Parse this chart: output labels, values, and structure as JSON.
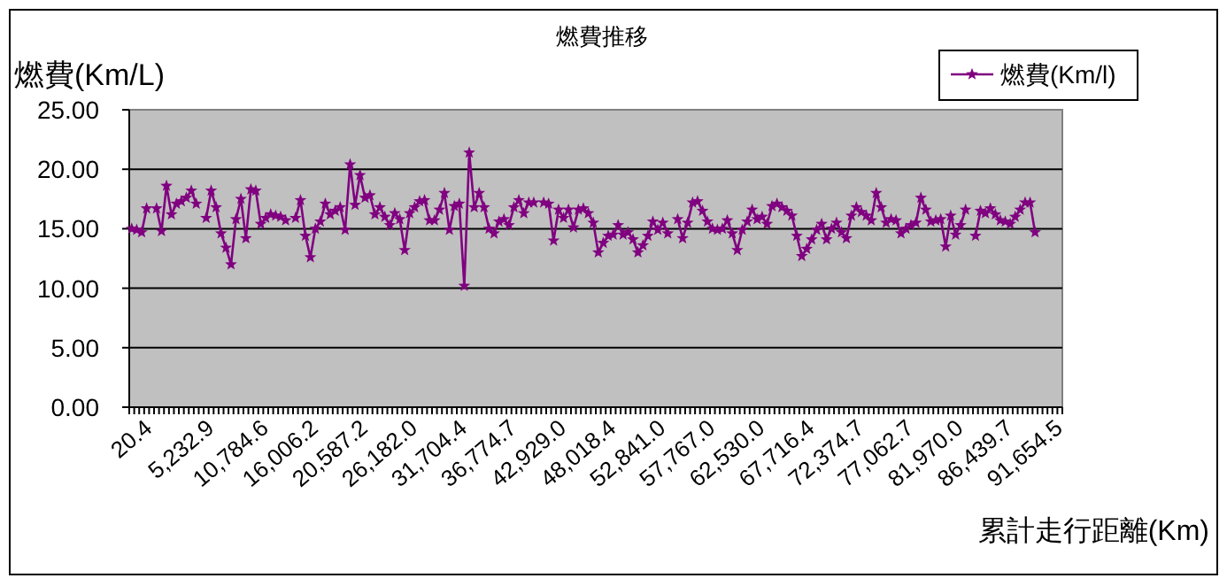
{
  "chart_data": {
    "type": "line",
    "title": "燃費推移",
    "ylabel": "燃費(Km/L)",
    "xlabel": "累計走行距離(Km)",
    "categories": [
      "20.4",
      null,
      null,
      null,
      null,
      null,
      null,
      null,
      null,
      null,
      "5,232.9",
      null,
      null,
      null,
      null,
      null,
      null,
      null,
      null,
      null,
      "10,784.6",
      null,
      null,
      null,
      null,
      null,
      null,
      null,
      null,
      null,
      "16,006.2",
      null,
      null,
      null,
      null,
      null,
      null,
      null,
      null,
      null,
      "20,587.2",
      null,
      null,
      null,
      null,
      null,
      null,
      null,
      null,
      null,
      "26,182.0",
      null,
      null,
      null,
      null,
      null,
      null,
      null,
      null,
      null,
      "31,704.4",
      null,
      null,
      null,
      null,
      null,
      null,
      null,
      null,
      null,
      "36,774.7",
      null,
      null,
      null,
      null,
      null,
      null,
      null,
      null,
      null,
      "42,929.0",
      null,
      null,
      null,
      null,
      null,
      null,
      null,
      null,
      null,
      "48,018.4",
      null,
      null,
      null,
      null,
      null,
      null,
      null,
      null,
      null,
      "52,841.0",
      null,
      null,
      null,
      null,
      null,
      null,
      null,
      null,
      null,
      "57,767.0",
      null,
      null,
      null,
      null,
      null,
      null,
      null,
      null,
      null,
      "62,530.0",
      null,
      null,
      null,
      null,
      null,
      null,
      null,
      null,
      null,
      "67,716.4",
      null,
      null,
      null,
      null,
      null,
      null,
      null,
      null,
      null,
      "72,374.7",
      null,
      null,
      null,
      null,
      null,
      null,
      null,
      null,
      null,
      "77,062.7",
      null,
      null,
      null,
      null,
      null,
      null,
      null,
      null,
      null,
      "81,970.0",
      null,
      null,
      null,
      null,
      null,
      null,
      null,
      null,
      null,
      "86,439.7",
      null,
      null,
      null,
      null,
      null,
      null,
      null,
      null,
      null,
      "91,654.5",
      null,
      null,
      null,
      null,
      null,
      null,
      null
    ],
    "series": [
      {
        "name": "燃費(Km/l)",
        "color": "#800080",
        "values": [
          15.0,
          14.9,
          14.7,
          16.7,
          null,
          16.7,
          14.8,
          18.6,
          16.2,
          17.1,
          17.3,
          17.6,
          18.2,
          17.1,
          null,
          15.9,
          18.2,
          16.8,
          14.6,
          13.4,
          12.0,
          15.8,
          17.5,
          14.2,
          18.3,
          18.2,
          15.4,
          15.9,
          16.2,
          16.1,
          16.0,
          15.7,
          null,
          15.9,
          17.4,
          14.4,
          12.6,
          15.0,
          15.6,
          17.1,
          16.2,
          16.5,
          16.8,
          14.9,
          20.4,
          17.0,
          19.5,
          17.6,
          17.8,
          16.2,
          16.8,
          16.0,
          15.3,
          16.3,
          15.8,
          13.2,
          16.3,
          16.8,
          17.3,
          17.4,
          15.7,
          15.7,
          16.6,
          18.0,
          14.9,
          16.9,
          17.1,
          10.2,
          21.4,
          16.8,
          18.0,
          16.8,
          15.0,
          14.6,
          15.6,
          15.8,
          15.3,
          16.8,
          17.4,
          16.3,
          17.2,
          17.2,
          null,
          17.2,
          17.1,
          14.0,
          16.6,
          15.9,
          16.6,
          15.1,
          16.6,
          16.7,
          16.3,
          15.5,
          13.0,
          13.8,
          14.4,
          14.5,
          15.3,
          14.5,
          14.7,
          14.1,
          13.0,
          13.6,
          14.4,
          15.6,
          14.9,
          15.5,
          14.6,
          null,
          15.8,
          14.2,
          15.5,
          17.2,
          17.3,
          16.5,
          15.6,
          15.0,
          14.9,
          15.0,
          15.7,
          14.6,
          13.2,
          14.9,
          15.6,
          16.6,
          15.8,
          16.0,
          15.4,
          16.9,
          17.1,
          16.8,
          16.5,
          16.1,
          14.4,
          12.7,
          13.3,
          14.1,
          14.9,
          15.4,
          14.1,
          15.0,
          15.5,
          14.7,
          14.2,
          16.1,
          16.8,
          16.4,
          16.1,
          15.7,
          18.0,
          16.8,
          15.5,
          15.8,
          15.7,
          14.6,
          15.0,
          15.3,
          15.5,
          17.6,
          16.6,
          15.6,
          15.7,
          15.8,
          13.5,
          16.1,
          14.5,
          15.3,
          16.6,
          null,
          14.4,
          16.5,
          16.3,
          16.7,
          16.2,
          15.7,
          15.6,
          15.4,
          16.0,
          16.6,
          17.2,
          17.2,
          14.7,
          null,
          null,
          null,
          null,
          null
        ]
      }
    ],
    "ylim": [
      0,
      25
    ],
    "yticks": [
      {
        "value": 0,
        "label": "0.00"
      },
      {
        "value": 5,
        "label": "5.00"
      },
      {
        "value": 10,
        "label": "10.00"
      },
      {
        "value": 15,
        "label": "15.00"
      },
      {
        "value": 20,
        "label": "20.00"
      },
      {
        "value": 25,
        "label": "25.00"
      }
    ],
    "grid": "y",
    "legend": "top right",
    "marker": "star"
  }
}
